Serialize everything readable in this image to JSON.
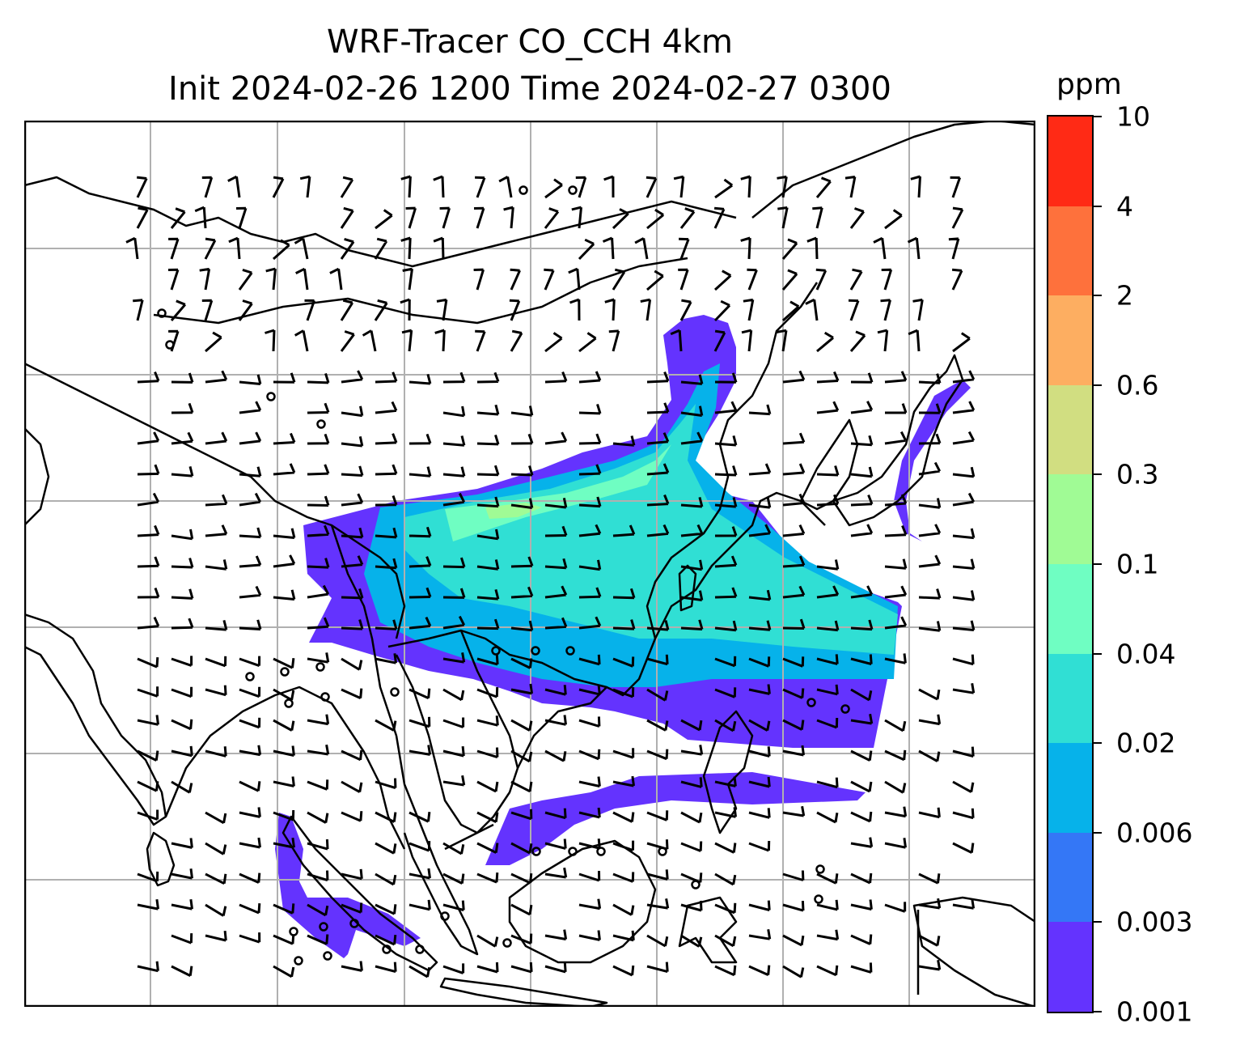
{
  "title": {
    "line1": "WRF-Tracer CO_CCH 4km",
    "line2": "Init 2024-02-26 1200 Time 2024-02-27 0300"
  },
  "colorbar": {
    "unit": "ppm",
    "levels": [
      "0.001",
      "0.003",
      "0.006",
      "0.02",
      "0.04",
      "0.1",
      "0.3",
      "0.6",
      "2",
      "4",
      "10"
    ],
    "colors": [
      "#6433fe",
      "#3477f6",
      "#06b2ea",
      "#30dfd4",
      "#6ffec2",
      "#a0fb95",
      "#d1de81",
      "#fdae61",
      "#fe713c",
      "#ff2a15"
    ]
  },
  "map": {
    "gridline_color": "#b0b0b0",
    "coastline_color": "#000000",
    "grid": true,
    "wind_barbs": true
  }
}
